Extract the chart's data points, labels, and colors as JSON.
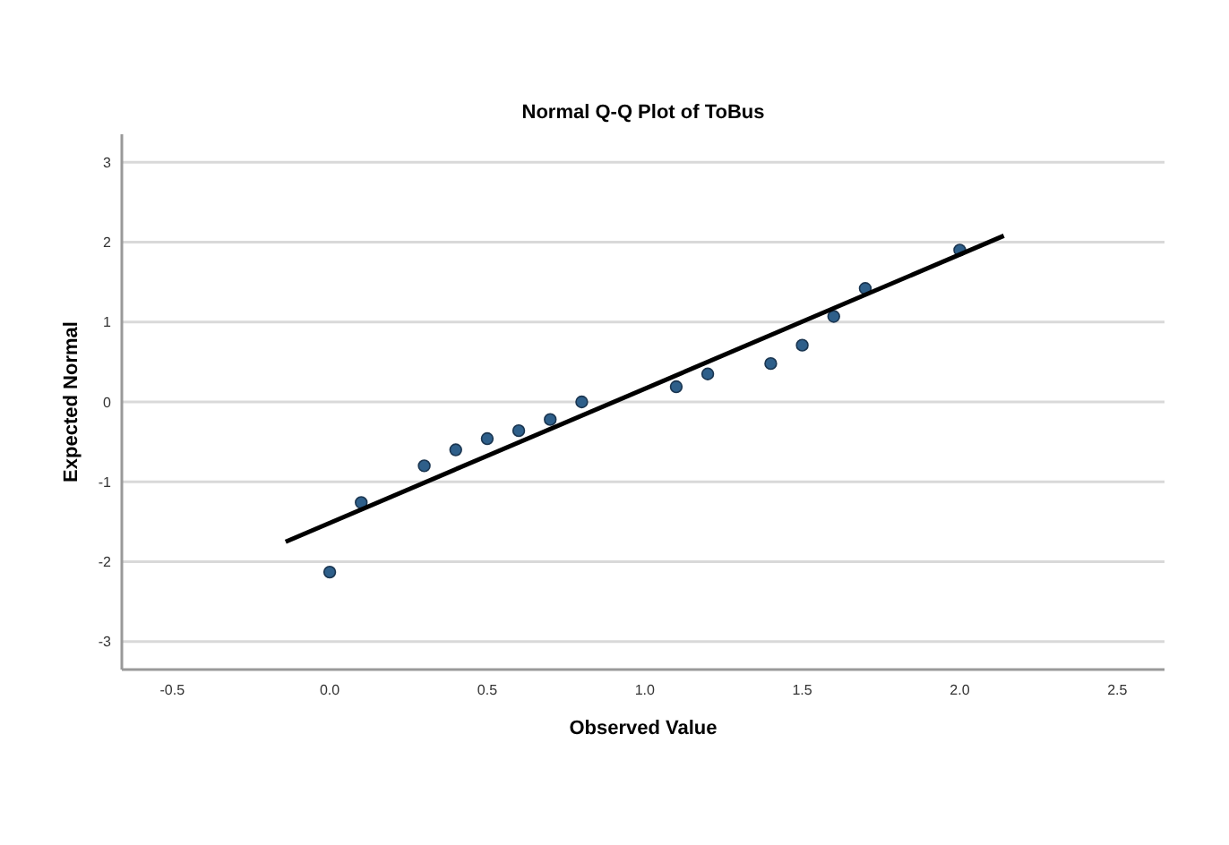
{
  "chart_data": {
    "type": "scatter",
    "title": "Normal Q-Q Plot of ToBus",
    "xlabel": "Observed Value",
    "ylabel": "Expected Normal",
    "series": [
      {
        "marker": "circle",
        "color": "#2e5f8a",
        "x": [
          0.0,
          0.1,
          0.3,
          0.4,
          0.5,
          0.6,
          0.7,
          0.8,
          1.1,
          1.2,
          1.4,
          1.5,
          1.6,
          1.7,
          2.0
        ],
        "values": [
          -2.13,
          -1.26,
          -0.8,
          -0.6,
          -0.46,
          -0.36,
          -0.22,
          0.0,
          0.19,
          0.35,
          0.48,
          0.71,
          1.07,
          1.42,
          1.9
        ]
      },
      {
        "type": "line",
        "color": "#000000",
        "x": [
          -0.14,
          2.14
        ],
        "values": [
          -1.75,
          2.08
        ]
      }
    ],
    "xlim": [
      -0.66,
      2.65
    ],
    "xticks": [
      {
        "value": -0.5,
        "label": "-0.5"
      },
      {
        "value": 0,
        "label": "0.0"
      },
      {
        "value": 0.5,
        "label": "0.5"
      },
      {
        "value": 1,
        "label": "1.0"
      },
      {
        "value": 1.5,
        "label": "1.5"
      },
      {
        "value": 2,
        "label": "2.0"
      },
      {
        "value": 2.5,
        "label": "2.5"
      }
    ],
    "ylim": [
      -3.35,
      3.35
    ],
    "yticks": [
      -3,
      -2,
      -1,
      0,
      1,
      2,
      3
    ],
    "grid": "y"
  }
}
